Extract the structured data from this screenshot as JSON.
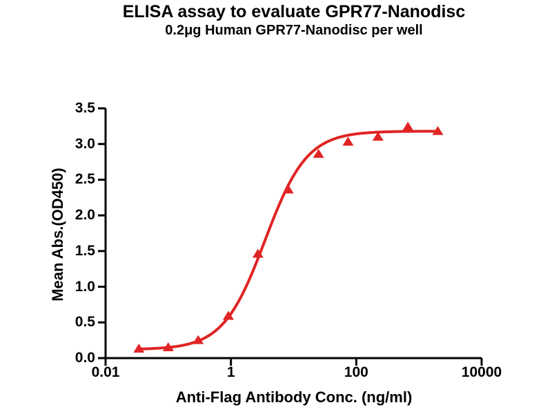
{
  "header": {
    "title": "ELISA assay to evaluate GPR77-Nanodisc",
    "subtitle": "0.2μg Human GPR77-Nanodisc per well"
  },
  "chart_data": {
    "type": "scatter",
    "title": "ELISA assay to evaluate GPR77-Nanodisc",
    "subtitle": "0.2μg Human GPR77-Nanodisc per well",
    "xlabel": "Anti-Flag Antibody Conc. (ng/ml)",
    "ylabel": "Mean Abs.(OD450)",
    "x_scale": "log10",
    "xlim": [
      0.01,
      10000
    ],
    "ylim": [
      0.0,
      3.5
    ],
    "x_ticks": [
      0.01,
      1,
      100,
      10000
    ],
    "x_tick_labels": [
      "0.01",
      "1",
      "100",
      "10000"
    ],
    "y_ticks": [
      0.0,
      0.5,
      1.0,
      1.5,
      2.0,
      2.5,
      3.0,
      3.5
    ],
    "y_tick_labels": [
      "0.0",
      "0.5",
      "1.0",
      "1.5",
      "2.0",
      "2.5",
      "3.0",
      "3.5"
    ],
    "grid": false,
    "legend_position": "none",
    "axis_color": "#000000",
    "series": [
      {
        "name": "Human GPR77-Nanodisc",
        "marker": "triangle-up",
        "color": "#e02424",
        "points": [
          {
            "x": 0.034,
            "y": 0.13
          },
          {
            "x": 0.1,
            "y": 0.15
          },
          {
            "x": 0.3,
            "y": 0.25
          },
          {
            "x": 0.91,
            "y": 0.59
          },
          {
            "x": 2.7,
            "y": 1.46
          },
          {
            "x": 8.2,
            "y": 2.36
          },
          {
            "x": 25,
            "y": 2.86
          },
          {
            "x": 74,
            "y": 3.03
          },
          {
            "x": 222,
            "y": 3.1
          },
          {
            "x": 667,
            "y": 3.24
          },
          {
            "x": 2000,
            "y": 3.18
          }
        ]
      }
    ],
    "fit_curve": {
      "model": "4PL",
      "bottom": 0.12,
      "top": 3.18,
      "ec50": 3.5,
      "hill": 1.3,
      "color": "#e02424",
      "x_range": [
        0.034,
        2000
      ]
    }
  }
}
